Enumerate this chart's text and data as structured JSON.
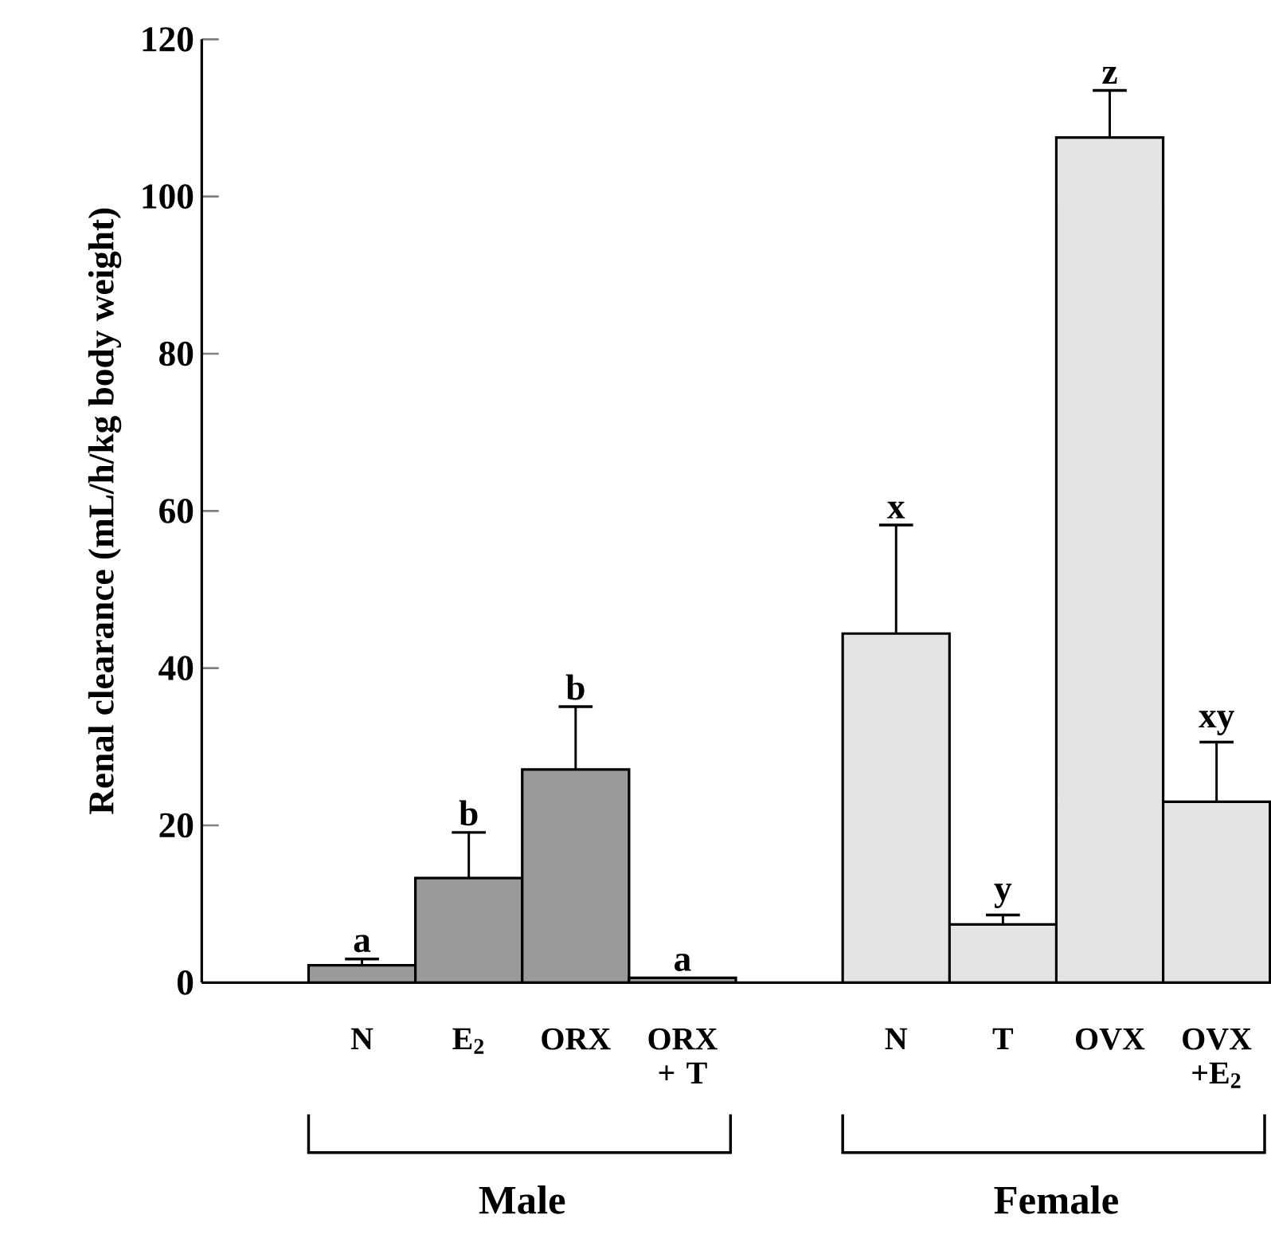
{
  "chart_data": {
    "type": "bar",
    "ylabel": "Renal clearance (mL/h/kg body weight)",
    "categories": [
      "N",
      "E$_{2}$",
      "ORX",
      "ORX + T",
      null,
      "N",
      "T",
      "OVX",
      "OVX +E$_{2}$"
    ],
    "series": [
      {
        "color": "#9a9a9a",
        "values": [
          2.2,
          13.3,
          27.1,
          0.6,
          null,
          null,
          null,
          null,
          null
        ],
        "errors": [
          0.8,
          5.8,
          8.0,
          null,
          null,
          null,
          null,
          null,
          null
        ]
      },
      {
        "color": "#e4e4e4",
        "values": [
          null,
          null,
          null,
          null,
          null,
          44.4,
          7.4,
          107.5,
          23.0
        ],
        "errors": [
          null,
          null,
          null,
          null,
          null,
          13.8,
          1.2,
          6.0,
          7.6
        ]
      }
    ],
    "ylim": [
      0,
      120
    ],
    "yticks": [
      0,
      20,
      40,
      60,
      80,
      100,
      120
    ],
    "annotations": [
      "a",
      "b",
      "b",
      "a",
      "x",
      "y",
      "z",
      "xy",
      "Male",
      "Female"
    ]
  }
}
